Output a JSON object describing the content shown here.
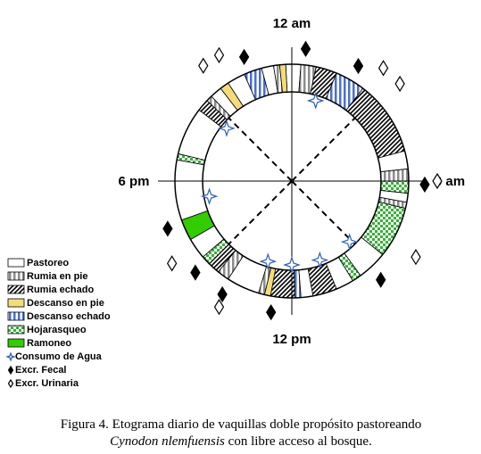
{
  "chart_data": {
    "type": "polar-ethogram",
    "xlim": [
      0,
      24
    ],
    "xticks": [
      {
        "value": 0,
        "label": "12 am"
      },
      {
        "value": 6,
        "label": "6 am"
      },
      {
        "value": 12,
        "label": "12 pm"
      },
      {
        "value": 18,
        "label": "6 pm"
      }
    ],
    "series": [
      {
        "name": "Pastoreo",
        "color": "#ffffff",
        "pattern": "none",
        "start": [
          0,
          5.0,
          6.4,
          8.6,
          9.9,
          11.3,
          13.1,
          15.3,
          16.7,
          18.9,
          21.1,
          21.8,
          23.0,
          23.8
        ],
        "end": [
          0.3,
          5.6,
          6.7,
          9.6,
          10.5,
          11.7,
          14.2,
          16.0,
          18.7,
          20.5,
          21.5,
          22.4,
          23.4,
          24
        ]
      },
      {
        "name": "Rumia en pie",
        "color": "#8c8c8c",
        "pattern": "vertical",
        "start": [
          0.3,
          5.6,
          6.7,
          12.9,
          14.2,
          20.9,
          23.4
        ],
        "end": [
          0.8,
          6.0,
          6.9,
          13.1,
          14.6,
          21.1,
          23.6
        ]
      },
      {
        "name": "Rumia echado",
        "color": "#000000",
        "pattern": "diagonal",
        "start": [
          0.8,
          2.5,
          10.5,
          11.9,
          14.6,
          20.5
        ],
        "end": [
          1.5,
          5.0,
          11.3,
          12.7,
          15.0,
          20.9
        ]
      },
      {
        "name": "Descanso en pie",
        "color": "#f5dc7a",
        "pattern": "none",
        "start": [
          12.7,
          21.5,
          23.6
        ],
        "end": [
          12.9,
          21.8,
          23.8
        ]
      },
      {
        "name": "Descanso echado",
        "color": "#4a6fd0",
        "pattern": "vertical",
        "start": [
          1.5,
          11.7,
          22.4
        ],
        "end": [
          2.5,
          11.9,
          23.0
        ]
      },
      {
        "name": "Hojarasqueo",
        "color": "#3cae3c",
        "pattern": "checker",
        "start": [
          6.0,
          6.9,
          9.6,
          15.0,
          18.7
        ],
        "end": [
          6.4,
          8.6,
          9.9,
          15.3,
          18.9
        ]
      },
      {
        "name": "Ramoneo",
        "color": "#33cc00",
        "pattern": "none",
        "start": [
          16.0
        ],
        "end": [
          16.7
        ]
      }
    ],
    "events": [
      {
        "name": "Consumo de Agua",
        "marker": "star",
        "color": "#2f5fb3",
        "values": [
          1.1,
          9.1,
          10.7,
          12.0,
          13.1,
          17.3,
          20.6
        ]
      },
      {
        "name": "Excr. Fecal",
        "marker": "diamond",
        "color": "#000000",
        "values": [
          0.4,
          2.0,
          6.1,
          9.2,
          12.6,
          14.1,
          15.1,
          16.6,
          22.6
        ]
      },
      {
        "name": "Excr. Urinaria",
        "marker": "diamond-open",
        "color": "#ffffff",
        "values": [
          2.6,
          3.2,
          6.0,
          8.1,
          14.0,
          15.7,
          21.5,
          22.0
        ]
      }
    ],
    "caption": {
      "line1": "Figura 4. Etograma diario de vaquillas doble propósito pastoreando",
      "species": "Cynodon nlemfuensis",
      "line2_rest": " con libre acceso al bosque."
    }
  }
}
